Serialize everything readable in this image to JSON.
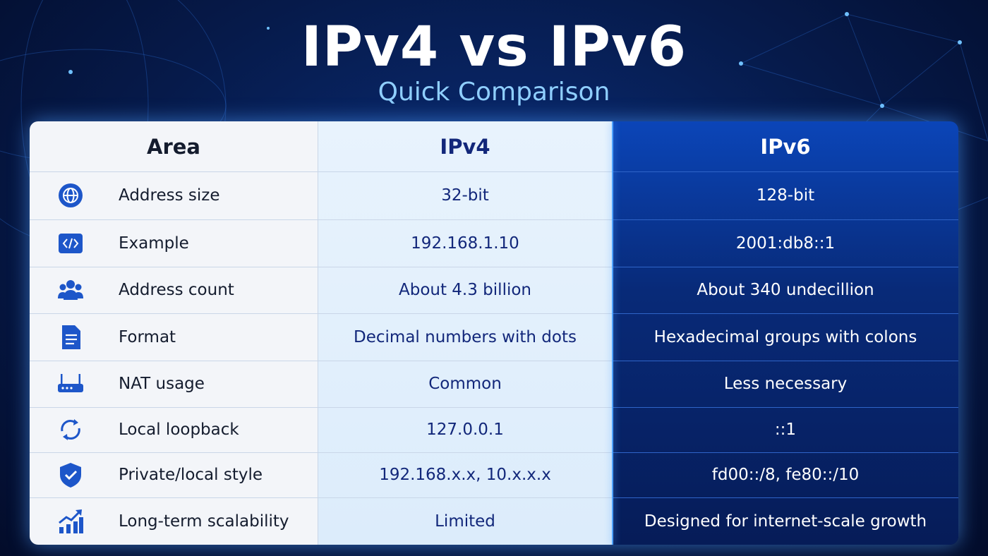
{
  "header": {
    "title": "IPv4 vs IPv6",
    "subtitle": "Quick Comparison"
  },
  "table": {
    "columns": [
      "Area",
      "IPv4",
      "IPv6"
    ],
    "rows": [
      [
        "Address size",
        "32-bit",
        "128-bit"
      ],
      [
        "Example",
        "192.168.1.10",
        "2001:db8::1"
      ],
      [
        "Address count",
        "About 4.3 billion",
        "About 340 undecillion"
      ],
      [
        "Format",
        "Decimal numbers with dots",
        "Hexadecimal groups with colons"
      ],
      [
        "NAT usage",
        "Common",
        "Less necessary"
      ],
      [
        "Local loopback",
        "127.0.0.1",
        "::1"
      ],
      [
        "Private/local style",
        "192.168.x.x, 10.x.x.x",
        "fd00::/8, fe80::/10"
      ],
      [
        "Long-term scalability",
        "Limited",
        "Designed for internet-scale growth"
      ]
    ]
  }
}
